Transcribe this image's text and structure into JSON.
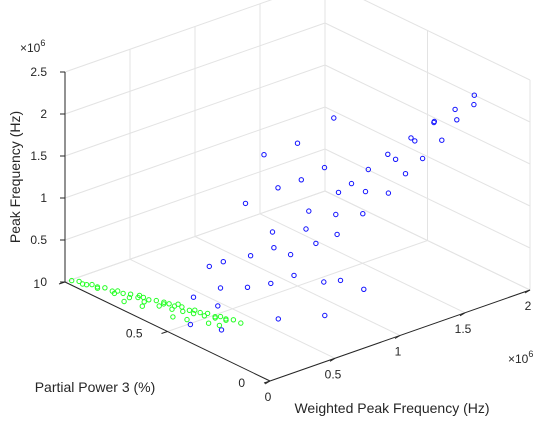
{
  "chart_data": {
    "type": "scatter",
    "projection": "3d",
    "title": "",
    "xlabel": "Weighted Peak Frequency (Hz)",
    "ylabel": "Partial Power 3 (%)",
    "zlabel": "Peak Frequency (Hz)",
    "xlim": [
      0,
      2000000
    ],
    "ylim": [
      0,
      1
    ],
    "zlim": [
      0,
      2500000
    ],
    "x_ticks": [
      0,
      0.5,
      1,
      1.5,
      2
    ],
    "x_tick_labels": [
      "0",
      "0.5",
      "1",
      "1.5",
      "2"
    ],
    "x_exponent": "×10",
    "x_exponent_power": "6",
    "y_ticks": [
      0,
      0.5,
      1
    ],
    "y_tick_labels": [
      "0",
      "0.5",
      "1"
    ],
    "z_ticks": [
      0,
      0.5,
      1,
      1.5,
      2,
      2.5
    ],
    "z_tick_labels": [
      "0",
      "0.5",
      "1",
      "1.5",
      "2",
      "2.5"
    ],
    "z_exponent": "×10",
    "z_exponent_power": "6",
    "grid": true,
    "legend": "none",
    "series": [
      {
        "color": "#1010ff",
        "marker": "circle",
        "points": [
          [
            150000,
            0.35,
            400000
          ],
          [
            250000,
            0.4,
            500000
          ],
          [
            300000,
            0.3,
            600000
          ],
          [
            350000,
            0.45,
            700000
          ],
          [
            400000,
            0.25,
            650000
          ],
          [
            450000,
            0.38,
            800000
          ],
          [
            500000,
            0.2,
            750000
          ],
          [
            550000,
            0.33,
            900000
          ],
          [
            600000,
            0.28,
            850000
          ],
          [
            650000,
            0.4,
            950000
          ],
          [
            700000,
            0.22,
            1000000
          ],
          [
            750000,
            0.3,
            1050000
          ],
          [
            800000,
            0.18,
            1100000
          ],
          [
            850000,
            0.35,
            1150000
          ],
          [
            900000,
            0.25,
            1200000
          ],
          [
            950000,
            0.15,
            1300000
          ],
          [
            1000000,
            0.3,
            1350000
          ],
          [
            1050000,
            0.2,
            1450000
          ],
          [
            1100000,
            0.12,
            1500000
          ],
          [
            1150000,
            0.25,
            1600000
          ],
          [
            1200000,
            0.1,
            1700000
          ],
          [
            1250000,
            0.18,
            1750000
          ],
          [
            1300000,
            0.08,
            1850000
          ],
          [
            1350000,
            0.15,
            1950000
          ],
          [
            1400000,
            0.05,
            2050000
          ],
          [
            1450000,
            0.12,
            2150000
          ],
          [
            1500000,
            0.04,
            2250000
          ],
          [
            1550000,
            0.08,
            2300000
          ],
          [
            1600000,
            0.02,
            2400000
          ],
          [
            1650000,
            0.05,
            2450000
          ],
          [
            900000,
            0.6,
            1500000
          ],
          [
            1200000,
            0.45,
            1950000
          ],
          [
            1000000,
            0.5,
            1700000
          ],
          [
            600000,
            0.5,
            1200000
          ],
          [
            200000,
            0.5,
            300000
          ],
          [
            100000,
            0.3,
            200000
          ],
          [
            50000,
            0.42,
            150000
          ],
          [
            400000,
            0.55,
            500000
          ],
          [
            700000,
            0.1,
            700000
          ],
          [
            800000,
            0.05,
            600000
          ],
          [
            300000,
            0.15,
            400000
          ],
          [
            500000,
            0.05,
            450000
          ],
          [
            650000,
            0.15,
            650000
          ],
          [
            1100000,
            0.3,
            1400000
          ],
          [
            1300000,
            0.25,
            1700000
          ],
          [
            1400000,
            0.2,
            1900000
          ],
          [
            1500000,
            0.15,
            2100000
          ],
          [
            1050000,
            0.4,
            1500000
          ],
          [
            950000,
            0.45,
            1350000
          ],
          [
            850000,
            0.5,
            1250000
          ]
        ]
      },
      {
        "color": "#22ff22",
        "marker": "circle",
        "points": [
          [
            20000,
            0.98,
            30000
          ],
          [
            30000,
            0.95,
            50000
          ],
          [
            40000,
            0.92,
            40000
          ],
          [
            50000,
            0.9,
            60000
          ],
          [
            60000,
            0.88,
            50000
          ],
          [
            70000,
            0.85,
            70000
          ],
          [
            80000,
            0.82,
            60000
          ],
          [
            90000,
            0.8,
            80000
          ],
          [
            100000,
            0.78,
            70000
          ],
          [
            110000,
            0.75,
            90000
          ],
          [
            120000,
            0.72,
            80000
          ],
          [
            130000,
            0.7,
            100000
          ],
          [
            140000,
            0.68,
            90000
          ],
          [
            150000,
            0.65,
            110000
          ],
          [
            160000,
            0.62,
            100000
          ],
          [
            170000,
            0.6,
            120000
          ],
          [
            180000,
            0.58,
            110000
          ],
          [
            190000,
            0.55,
            130000
          ],
          [
            200000,
            0.52,
            120000
          ],
          [
            210000,
            0.5,
            140000
          ],
          [
            220000,
            0.48,
            130000
          ],
          [
            230000,
            0.45,
            150000
          ],
          [
            240000,
            0.42,
            140000
          ],
          [
            250000,
            0.4,
            160000
          ],
          [
            260000,
            0.38,
            150000
          ],
          [
            270000,
            0.35,
            170000
          ],
          [
            280000,
            0.32,
            160000
          ],
          [
            25000,
            0.93,
            45000
          ],
          [
            45000,
            0.87,
            55000
          ],
          [
            65000,
            0.8,
            65000
          ],
          [
            85000,
            0.74,
            75000
          ],
          [
            105000,
            0.68,
            85000
          ],
          [
            125000,
            0.62,
            95000
          ],
          [
            145000,
            0.57,
            105000
          ],
          [
            165000,
            0.53,
            115000
          ],
          [
            185000,
            0.49,
            125000
          ],
          [
            205000,
            0.45,
            135000
          ],
          [
            225000,
            0.41,
            145000
          ],
          [
            245000,
            0.37,
            155000
          ],
          [
            150000,
            0.5,
            60000
          ],
          [
            120000,
            0.55,
            50000
          ],
          [
            190000,
            0.42,
            90000
          ],
          [
            60000,
            0.75,
            30000
          ],
          [
            90000,
            0.68,
            40000
          ],
          [
            210000,
            0.38,
            100000
          ],
          [
            130000,
            0.6,
            160000
          ],
          [
            160000,
            0.55,
            180000
          ],
          [
            100000,
            0.7,
            140000
          ]
        ]
      }
    ]
  }
}
